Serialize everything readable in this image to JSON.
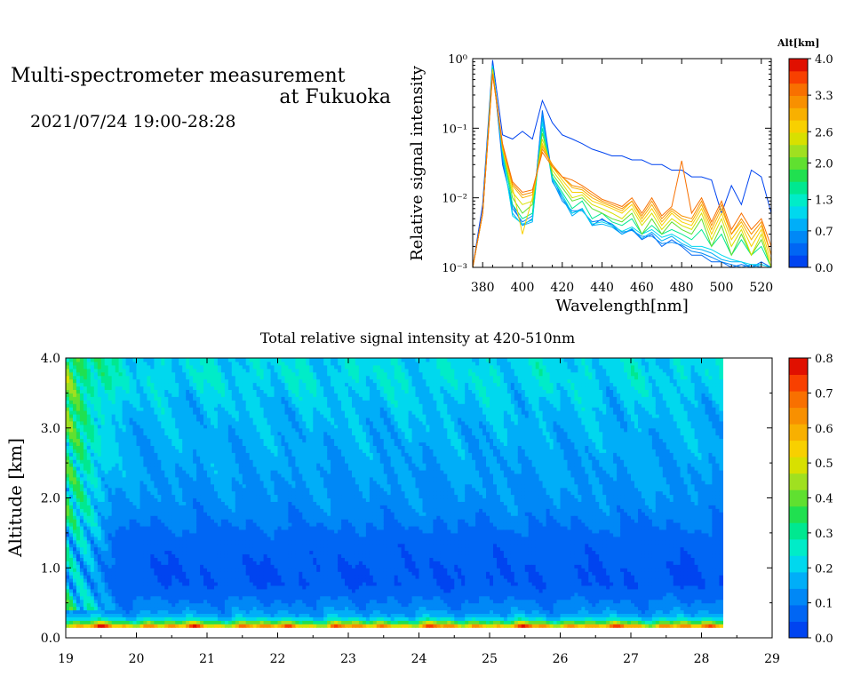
{
  "header": {
    "title_line1": "Multi-spectrometer measurement",
    "title_line2": "at Fukuoka",
    "datetime": "2021/07/24 19:00-28:28"
  },
  "colormap": [
    "#0044f0",
    "#0066f4",
    "#0088f6",
    "#00aef8",
    "#00d8ee",
    "#00ecc8",
    "#00e890",
    "#20e050",
    "#60e030",
    "#a0e020",
    "#d8e000",
    "#f8d000",
    "#f8b000",
    "#f89000",
    "#f87000",
    "#f84000",
    "#e01000"
  ],
  "chart_data": [
    {
      "type": "line",
      "ylabel": "Relative signal intensity",
      "xlabel": "Wavelength[nm]",
      "y_scale": "log",
      "ylim": [
        0.001,
        1
      ],
      "y_ticks": [
        "10⁰",
        "10⁻¹",
        "10⁻²",
        "10⁻³"
      ],
      "xlim": [
        375,
        525
      ],
      "x_ticks": [
        "380",
        "400",
        "420",
        "440",
        "460",
        "480",
        "500",
        "520"
      ],
      "x_tick_values": [
        380,
        400,
        420,
        440,
        460,
        480,
        500,
        520
      ],
      "colorbar": {
        "title": "Alt[km]",
        "range": [
          0,
          4
        ],
        "tick_labels": [
          "4.0",
          "3.3",
          "2.6",
          "2.0",
          "1.3",
          "0.7",
          "0.0"
        ],
        "tick_values": [
          4.0,
          3.3,
          2.6,
          2.0,
          1.3,
          0.7,
          0.0
        ]
      },
      "x": [
        375,
        380,
        385,
        390,
        395,
        400,
        405,
        410,
        415,
        420,
        425,
        430,
        435,
        440,
        445,
        450,
        455,
        460,
        465,
        470,
        475,
        480,
        485,
        490,
        495,
        500,
        505,
        510,
        515,
        520,
        525
      ],
      "series": [
        {
          "altitude": 0.1,
          "color": "#0044f0",
          "values": [
            0.001,
            0.008,
            0.95,
            0.08,
            0.07,
            0.09,
            0.07,
            0.25,
            0.12,
            0.08,
            0.07,
            0.06,
            0.05,
            0.045,
            0.04,
            0.04,
            0.035,
            0.035,
            0.03,
            0.03,
            0.025,
            0.025,
            0.02,
            0.02,
            0.018,
            0.006,
            0.015,
            0.008,
            0.025,
            0.02,
            0.006
          ]
        },
        {
          "altitude": 0.4,
          "color": "#0066f4",
          "values": [
            0.001,
            0.006,
            0.85,
            0.03,
            0.008,
            0.004,
            0.005,
            0.18,
            0.02,
            0.01,
            0.006,
            0.007,
            0.004,
            0.005,
            0.004,
            0.003,
            0.0035,
            0.0025,
            0.003,
            0.002,
            0.0025,
            0.002,
            0.0015,
            0.0015,
            0.0012,
            0.0012,
            0.001,
            0.0011,
            0.001,
            0.0012,
            0.001
          ]
        },
        {
          "altitude": 0.8,
          "color": "#0088f6",
          "values": [
            0.001,
            0.006,
            0.8,
            0.035,
            0.007,
            0.0045,
            0.0055,
            0.16,
            0.018,
            0.009,
            0.0065,
            0.0065,
            0.0045,
            0.0048,
            0.0042,
            0.0032,
            0.0034,
            0.0028,
            0.0028,
            0.0022,
            0.0023,
            0.0021,
            0.0017,
            0.0016,
            0.0014,
            0.0012,
            0.0011,
            0.001,
            0.0011,
            0.001,
            0.001
          ]
        },
        {
          "altitude": 1.2,
          "color": "#00aef8",
          "values": [
            0.001,
            0.006,
            0.8,
            0.04,
            0.006,
            0.004,
            0.0045,
            0.14,
            0.017,
            0.01,
            0.0055,
            0.007,
            0.004,
            0.0042,
            0.0038,
            0.003,
            0.0036,
            0.0026,
            0.0032,
            0.0024,
            0.0028,
            0.0022,
            0.0019,
            0.0018,
            0.0016,
            0.0013,
            0.0012,
            0.0012,
            0.001,
            0.0011,
            0.001
          ]
        },
        {
          "altitude": 1.5,
          "color": "#00d8ee",
          "values": [
            0.001,
            0.006,
            0.78,
            0.045,
            0.0055,
            0.0042,
            0.0048,
            0.12,
            0.019,
            0.011,
            0.006,
            0.0068,
            0.0042,
            0.0045,
            0.004,
            0.0033,
            0.0038,
            0.003,
            0.0035,
            0.0027,
            0.003,
            0.0025,
            0.002,
            0.002,
            0.0018,
            0.0015,
            0.0013,
            0.0012,
            0.0011,
            0.0011,
            0.001
          ]
        },
        {
          "altitude": 1.9,
          "color": "#00e890",
          "values": [
            0.001,
            0.006,
            0.75,
            0.05,
            0.008,
            0.005,
            0.006,
            0.1,
            0.02,
            0.012,
            0.007,
            0.009,
            0.005,
            0.006,
            0.0045,
            0.004,
            0.005,
            0.003,
            0.004,
            0.003,
            0.0035,
            0.003,
            0.0025,
            0.0035,
            0.002,
            0.003,
            0.0015,
            0.0025,
            0.0015,
            0.002,
            0.001
          ]
        },
        {
          "altitude": 2.3,
          "color": "#60e030",
          "values": [
            0.001,
            0.006,
            0.7,
            0.05,
            0.01,
            0.006,
            0.008,
            0.085,
            0.022,
            0.014,
            0.009,
            0.01,
            0.007,
            0.006,
            0.005,
            0.0045,
            0.006,
            0.003,
            0.005,
            0.003,
            0.0045,
            0.0035,
            0.003,
            0.005,
            0.002,
            0.004,
            0.0015,
            0.003,
            0.0015,
            0.0025,
            0.001
          ]
        },
        {
          "altitude": 2.7,
          "color": "#d8e000",
          "values": [
            0.001,
            0.006,
            0.7,
            0.05,
            0.012,
            0.008,
            0.009,
            0.07,
            0.025,
            0.016,
            0.01,
            0.011,
            0.008,
            0.007,
            0.006,
            0.005,
            0.007,
            0.004,
            0.006,
            0.0035,
            0.005,
            0.004,
            0.0035,
            0.006,
            0.0025,
            0.005,
            0.002,
            0.0035,
            0.0015,
            0.003,
            0.001
          ]
        },
        {
          "altitude": 3.1,
          "color": "#f8d000",
          "values": [
            0.001,
            0.006,
            0.65,
            0.055,
            0.014,
            0.003,
            0.01,
            0.06,
            0.028,
            0.018,
            0.012,
            0.012,
            0.009,
            0.008,
            0.007,
            0.006,
            0.008,
            0.0045,
            0.007,
            0.004,
            0.006,
            0.0045,
            0.004,
            0.007,
            0.003,
            0.006,
            0.0025,
            0.004,
            0.002,
            0.0035,
            0.0012
          ]
        },
        {
          "altitude": 3.4,
          "color": "#f8b000",
          "values": [
            0.001,
            0.006,
            0.62,
            0.055,
            0.015,
            0.01,
            0.011,
            0.055,
            0.03,
            0.02,
            0.014,
            0.013,
            0.01,
            0.0085,
            0.0075,
            0.0065,
            0.009,
            0.005,
            0.008,
            0.0045,
            0.0065,
            0.005,
            0.0045,
            0.008,
            0.0035,
            0.007,
            0.003,
            0.0045,
            0.0025,
            0.004,
            0.0015
          ]
        },
        {
          "altitude": 3.7,
          "color": "#f89000",
          "values": [
            0.001,
            0.006,
            0.6,
            0.055,
            0.016,
            0.011,
            0.012,
            0.05,
            0.03,
            0.02,
            0.015,
            0.014,
            0.011,
            0.009,
            0.008,
            0.007,
            0.009,
            0.0055,
            0.009,
            0.005,
            0.007,
            0.0055,
            0.005,
            0.009,
            0.004,
            0.008,
            0.003,
            0.005,
            0.003,
            0.0045,
            0.0015
          ]
        },
        {
          "altitude": 3.95,
          "color": "#f87000",
          "values": [
            0.001,
            0.006,
            0.6,
            0.06,
            0.017,
            0.012,
            0.013,
            0.045,
            0.028,
            0.02,
            0.018,
            0.015,
            0.012,
            0.0095,
            0.0085,
            0.0075,
            0.01,
            0.006,
            0.01,
            0.0055,
            0.0075,
            0.034,
            0.006,
            0.01,
            0.0045,
            0.009,
            0.0035,
            0.006,
            0.0035,
            0.005,
            0.002
          ]
        }
      ]
    },
    {
      "type": "heatmap",
      "title": "Total relative signal intensity at 420-510nm",
      "ylabel": "Altitude [km]",
      "xlim": [
        19,
        29
      ],
      "x_ticks": [
        "19",
        "20",
        "21",
        "22",
        "23",
        "24",
        "25",
        "26",
        "27",
        "28",
        "29"
      ],
      "ylim": [
        0,
        4
      ],
      "y_ticks": [
        "0.0",
        "1.0",
        "2.0",
        "3.0",
        "4.0"
      ],
      "data_x_end": 28.3,
      "colorbar": {
        "range": [
          0,
          0.8
        ],
        "tick_labels": [
          "0.8",
          "0.7",
          "0.6",
          "0.5",
          "0.4",
          "0.3",
          "0.2",
          "0.1",
          "0.0"
        ]
      },
      "altitudes_km": [
        0.15,
        0.2,
        0.25,
        0.3,
        0.35,
        0.5,
        0.75,
        1.0,
        1.25,
        1.5,
        1.75,
        2.0,
        2.25,
        2.5,
        2.75,
        3.0,
        3.25,
        3.5,
        3.75,
        3.95
      ],
      "profile_values": [
        0.66,
        0.5,
        0.26,
        0.18,
        0.14,
        0.1,
        0.05,
        0.05,
        0.06,
        0.08,
        0.11,
        0.13,
        0.14,
        0.15,
        0.16,
        0.17,
        0.18,
        0.2,
        0.22,
        0.21
      ]
    }
  ]
}
